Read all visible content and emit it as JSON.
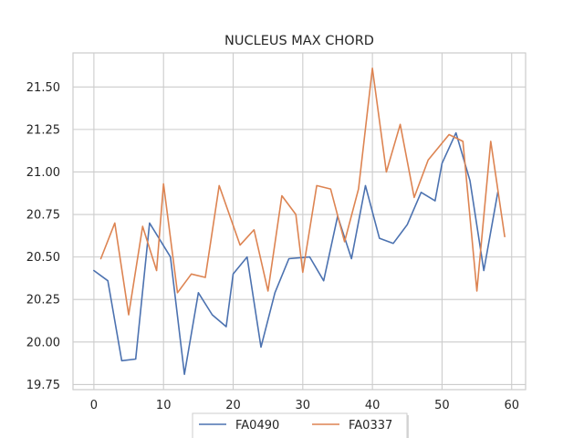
{
  "chart_data": {
    "type": "line",
    "title": "NUCLEUS MAX CHORD",
    "xlabel": "",
    "ylabel": "",
    "xlim": [
      -3,
      62
    ],
    "ylim": [
      19.72,
      21.7
    ],
    "xticks": [
      0,
      10,
      20,
      30,
      40,
      50,
      60
    ],
    "yticks": [
      19.75,
      20.0,
      20.25,
      20.5,
      20.75,
      21.0,
      21.25,
      21.5
    ],
    "ytick_labels": [
      "19.75",
      "20.00",
      "20.25",
      "20.50",
      "20.75",
      "21.00",
      "21.25",
      "21.50"
    ],
    "grid": true,
    "legend_position": "bottom-center",
    "series": [
      {
        "name": "FA0490",
        "color": "#4c72b0",
        "x": [
          0,
          2,
          4,
          6,
          8,
          11,
          13,
          15,
          17,
          19,
          20,
          22,
          24,
          26,
          28,
          31,
          33,
          35,
          37,
          39,
          41,
          43,
          45,
          47,
          49,
          50,
          52,
          54,
          56,
          58
        ],
        "y": [
          20.42,
          20.36,
          19.89,
          19.9,
          20.7,
          20.5,
          19.81,
          20.29,
          20.16,
          20.09,
          20.4,
          20.5,
          19.97,
          20.29,
          20.49,
          20.5,
          20.36,
          20.74,
          20.49,
          20.92,
          20.61,
          20.58,
          20.69,
          20.88,
          20.83,
          21.05,
          21.23,
          20.95,
          20.42,
          20.88
        ]
      },
      {
        "name": "FA0337",
        "color": "#dd8452",
        "x": [
          1,
          3,
          5,
          7,
          9,
          10,
          12,
          14,
          16,
          18,
          21,
          23,
          25,
          27,
          29,
          30,
          32,
          34,
          36,
          38,
          40,
          42,
          44,
          46,
          48,
          51,
          53,
          55,
          57,
          59
        ],
        "y": [
          20.49,
          20.7,
          20.16,
          20.68,
          20.42,
          20.93,
          20.29,
          20.4,
          20.38,
          20.92,
          20.57,
          20.66,
          20.3,
          20.86,
          20.75,
          20.41,
          20.92,
          20.9,
          20.59,
          20.9,
          21.61,
          21.0,
          21.28,
          20.85,
          21.07,
          21.22,
          21.18,
          20.3,
          21.18,
          20.62
        ]
      }
    ]
  }
}
